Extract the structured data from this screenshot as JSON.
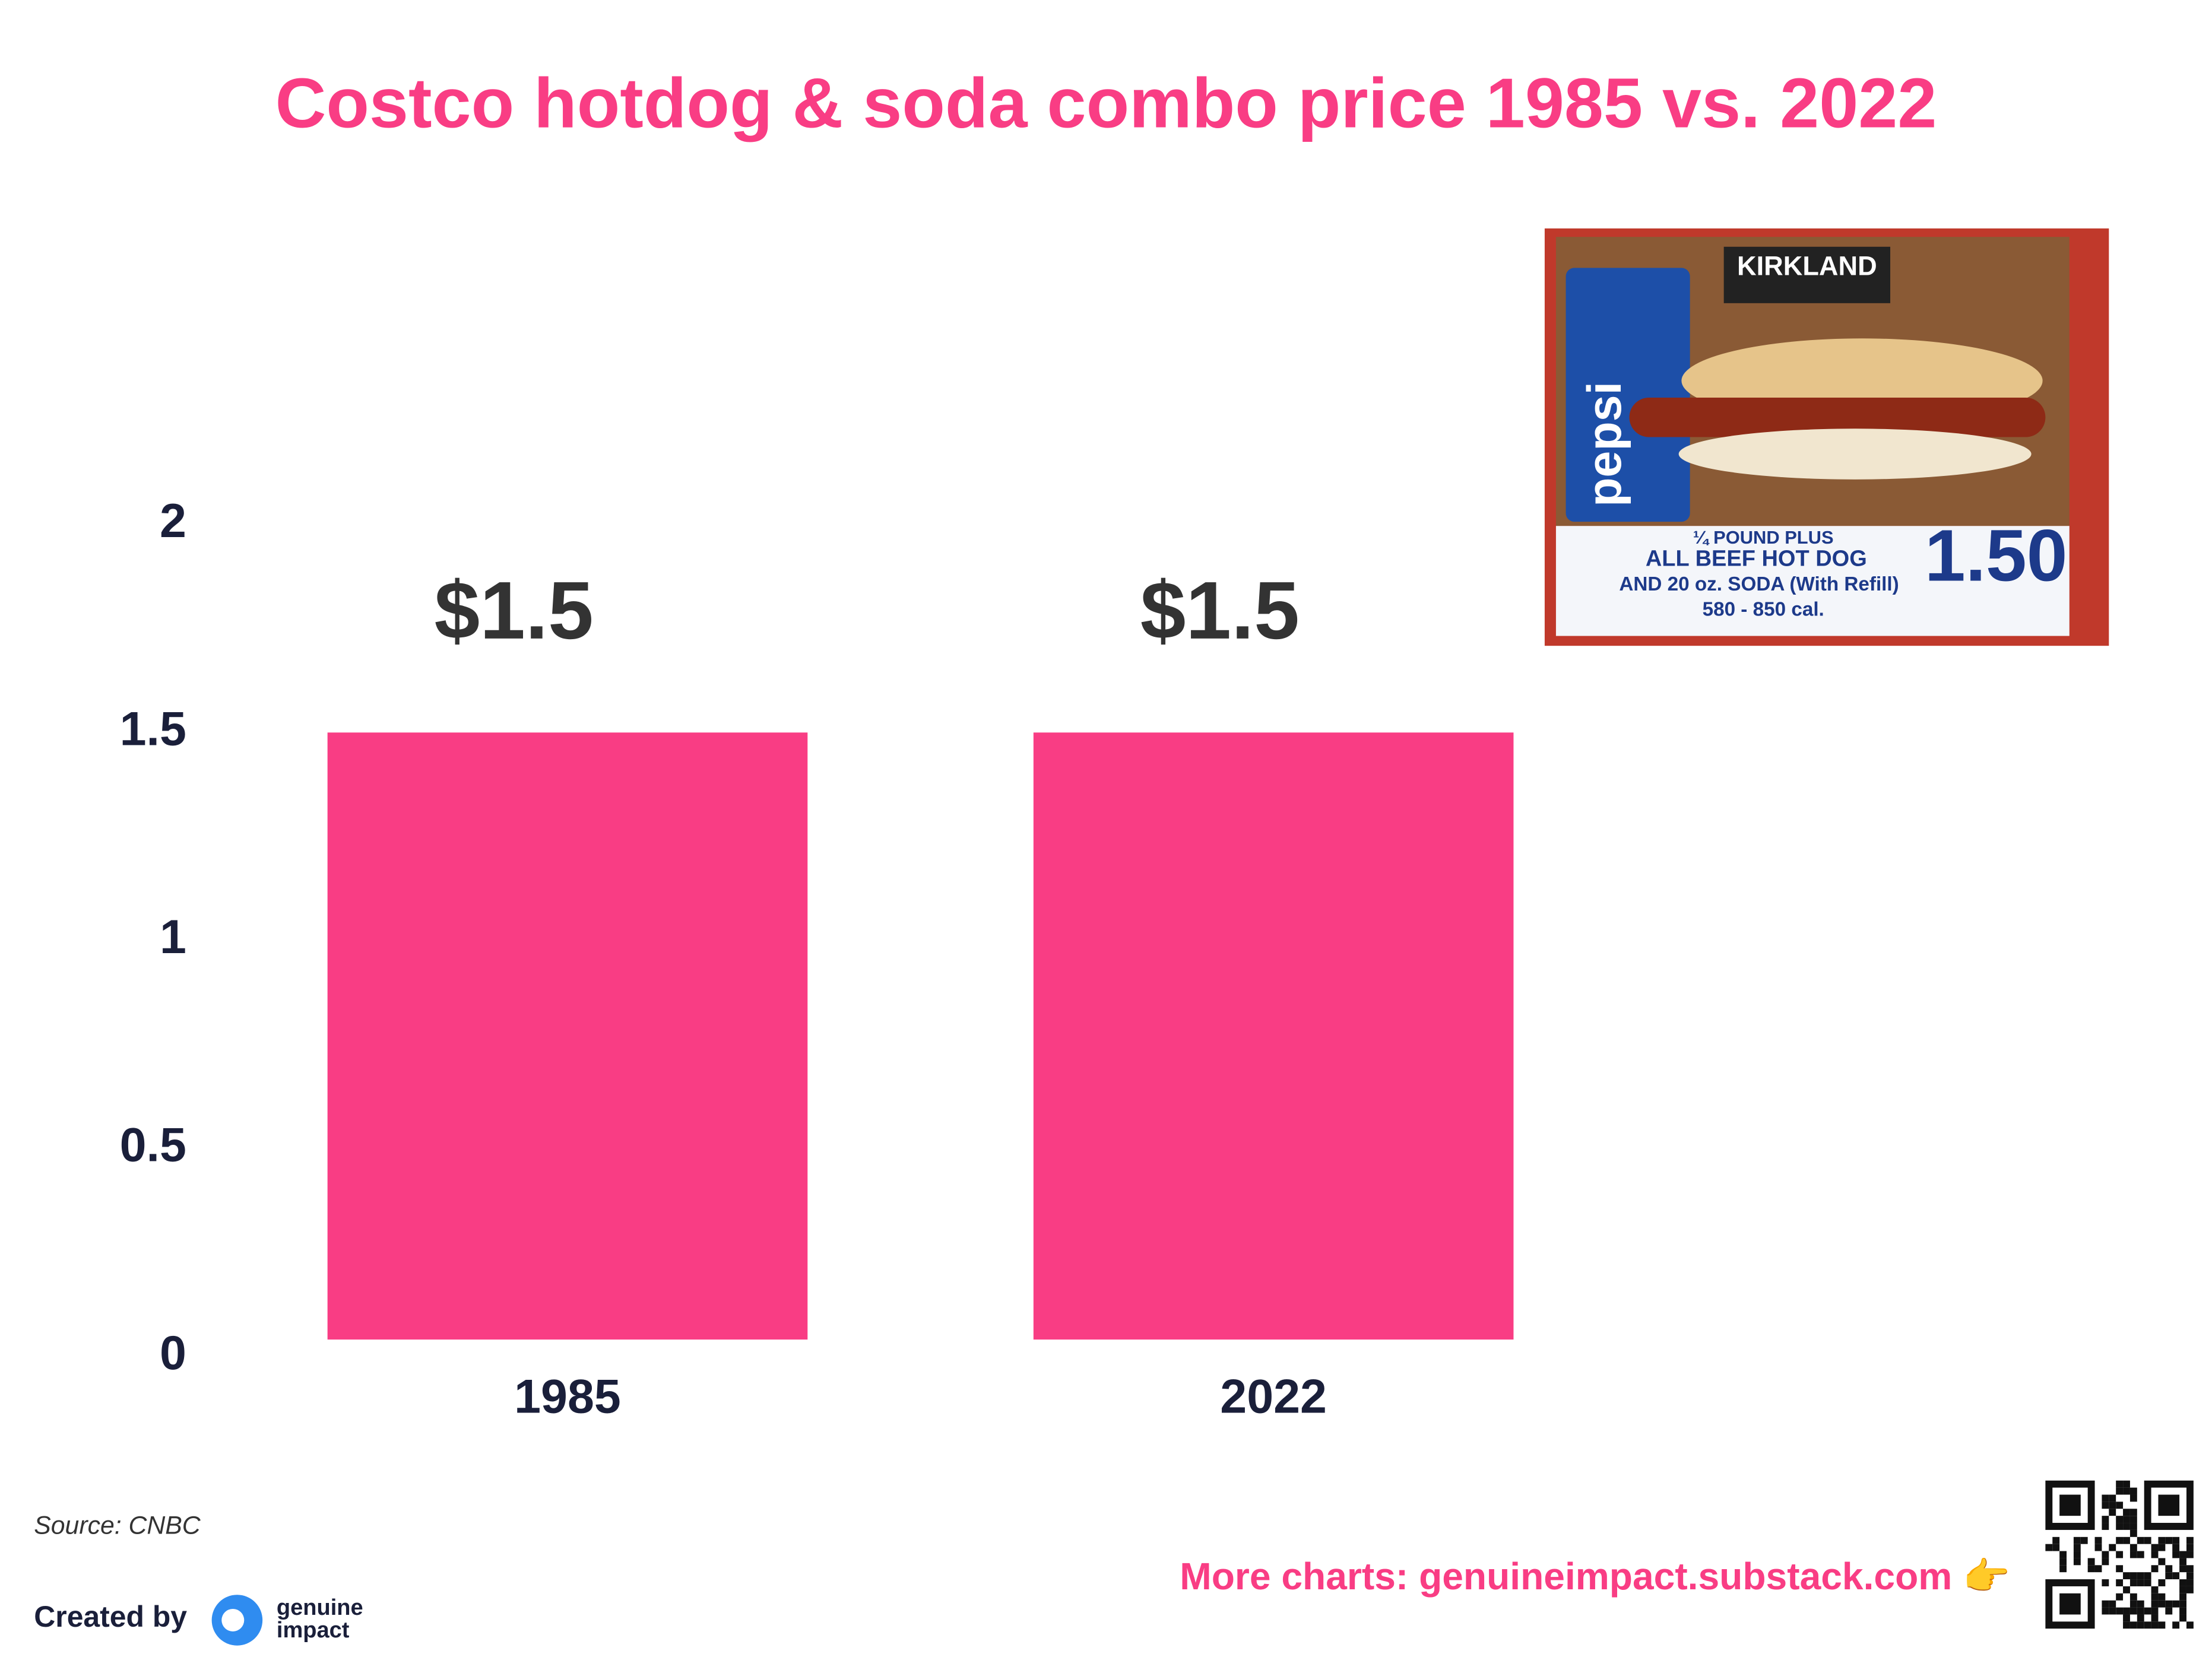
{
  "chart_data": {
    "type": "bar",
    "title": "Costco hotdog & soda combo price 1985 vs. 2022",
    "categories": [
      "1985",
      "2022"
    ],
    "values": [
      1.5,
      1.5
    ],
    "value_labels": [
      "$1.5",
      "$1.5"
    ],
    "color": "#f93d84",
    "ylim": [
      0,
      2
    ],
    "yticks": [
      0,
      0.5,
      1,
      1.5,
      2
    ],
    "grid": false,
    "source": "Source: CNBC",
    "credit": "Created by",
    "logo": [
      "genuine",
      "impact"
    ],
    "more": "More charts: genuineimpact.substack.com 👉",
    "photo": {
      "brand": "KIRKLAND",
      "soda": "pepsi",
      "price": "1.50",
      "caption": [
        "¼ POUND PLUS",
        "ALL BEEF HOT DOG",
        "AND 20 oz. SODA (With Refill)",
        "580 - 850 cal."
      ]
    }
  }
}
